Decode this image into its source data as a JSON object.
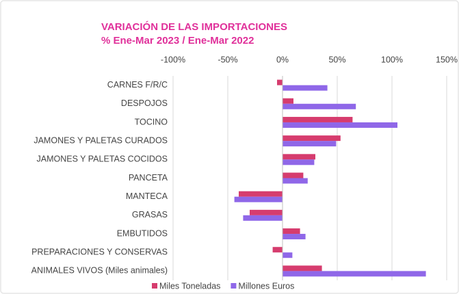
{
  "chart_data": {
    "type": "hbar",
    "title": "VARIACIÓN DE LAS IMPORTACIONES",
    "subtitle": "% Ene-Mar 2023 / Ene-Mar 2022",
    "categories": [
      "CARNES F/R/C",
      "DESPOJOS",
      "TOCINO",
      "JAMONES Y PALETAS CURADOS",
      "JAMONES Y PALETAS COCIDOS",
      "PANCETA",
      "MANTECA",
      "GRASAS",
      "EMBUTIDOS",
      "PREPARACIONES Y CONSERVAS",
      "ANIMALES VIVOS (Miles animales)"
    ],
    "series": [
      {
        "name": "Miles Toneladas",
        "color": "#d63c6e",
        "values": [
          -5,
          10,
          64,
          53,
          30,
          19,
          -40,
          -30,
          16,
          -9,
          36
        ]
      },
      {
        "name": "Millones Euros",
        "color": "#8f67e8",
        "values": [
          41,
          67,
          105,
          49,
          29,
          23,
          -44,
          -36,
          21,
          9,
          131
        ]
      }
    ],
    "xlim": [
      -100,
      150
    ],
    "xticks": [
      {
        "value": -100,
        "label": "-100%"
      },
      {
        "value": -50,
        "label": "-50%"
      },
      {
        "value": 0,
        "label": "0%"
      },
      {
        "value": 50,
        "label": "50%"
      },
      {
        "value": 100,
        "label": "100%"
      },
      {
        "value": 150,
        "label": "150%"
      }
    ],
    "grid": true,
    "legend": "bottom"
  }
}
